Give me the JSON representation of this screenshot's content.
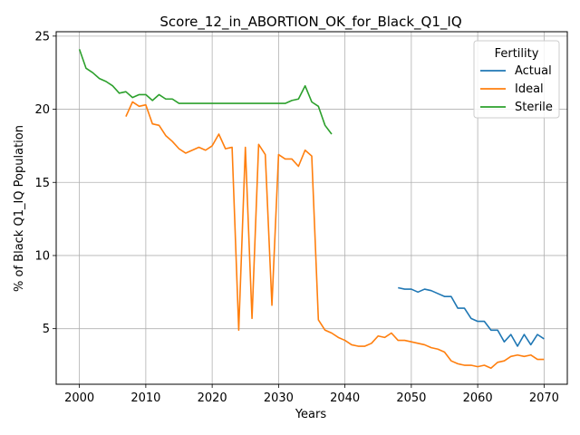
{
  "chart_data": {
    "type": "line",
    "title": "Score_12_in_ABORTION_OK_for_Black_Q1_IQ",
    "xlabel": "Years",
    "ylabel": "% of Black Q1_IQ Population",
    "xlim": [
      1996.5,
      2073.5
    ],
    "ylim": [
      1.2,
      25.3
    ],
    "xticks": [
      2000,
      2010,
      2020,
      2030,
      2040,
      2050,
      2060,
      2070
    ],
    "yticks": [
      5,
      10,
      15,
      20,
      25
    ],
    "grid": true,
    "legend": {
      "title": "Fertility",
      "placement": "top-right"
    },
    "series": [
      {
        "name": "Actual",
        "color": "#1f77b4",
        "x": [
          2048,
          2049,
          2050,
          2051,
          2052,
          2053,
          2054,
          2055,
          2056,
          2057,
          2058,
          2059,
          2060,
          2061,
          2062,
          2063,
          2064,
          2065,
          2066,
          2067,
          2068,
          2069,
          2070
        ],
        "y": [
          7.8,
          7.7,
          7.7,
          7.5,
          7.7,
          7.6,
          7.4,
          7.2,
          7.2,
          6.4,
          6.4,
          5.7,
          5.5,
          5.5,
          4.9,
          4.9,
          4.1,
          4.6,
          3.8,
          4.6,
          3.9,
          4.6,
          4.3
        ]
      },
      {
        "name": "Ideal",
        "color": "#ff7f0e",
        "x": [
          2007,
          2008,
          2009,
          2010,
          2011,
          2012,
          2013,
          2014,
          2015,
          2016,
          2017,
          2018,
          2019,
          2020,
          2021,
          2022,
          2023,
          2024,
          2025,
          2026,
          2027,
          2028,
          2029,
          2030,
          2031,
          2032,
          2033,
          2034,
          2035,
          2036,
          2037,
          2038,
          2039,
          2040,
          2041,
          2042,
          2043,
          2044,
          2045,
          2046,
          2047,
          2048,
          2049,
          2050,
          2051,
          2052,
          2053,
          2054,
          2055,
          2056,
          2057,
          2058,
          2059,
          2060,
          2061,
          2062,
          2063,
          2064,
          2065,
          2066,
          2067,
          2068,
          2069,
          2070
        ],
        "y": [
          19.5,
          20.5,
          20.2,
          20.3,
          19.0,
          18.9,
          18.2,
          17.8,
          17.3,
          17.0,
          17.2,
          17.4,
          17.2,
          17.5,
          18.3,
          17.3,
          17.4,
          4.9,
          17.4,
          5.7,
          17.6,
          16.9,
          6.6,
          16.9,
          16.6,
          16.6,
          16.1,
          17.2,
          16.8,
          5.6,
          4.9,
          4.7,
          4.4,
          4.2,
          3.9,
          3.8,
          3.8,
          4.0,
          4.5,
          4.4,
          4.7,
          4.2,
          4.2,
          4.1,
          4.0,
          3.9,
          3.7,
          3.6,
          3.4,
          2.8,
          2.6,
          2.5,
          2.5,
          2.4,
          2.5,
          2.3,
          2.7,
          2.8,
          3.1,
          3.2,
          3.1,
          3.2,
          2.9,
          2.9
        ]
      },
      {
        "name": "Sterile",
        "color": "#2ca02c",
        "x": [
          2000,
          2001,
          2002,
          2003,
          2004,
          2005,
          2006,
          2007,
          2008,
          2009,
          2010,
          2011,
          2012,
          2013,
          2014,
          2015,
          2016,
          2017,
          2018,
          2019,
          2020,
          2021,
          2022,
          2023,
          2024,
          2025,
          2026,
          2027,
          2028,
          2029,
          2030,
          2031,
          2032,
          2033,
          2034,
          2035,
          2036,
          2037,
          2038
        ],
        "y": [
          24.1,
          22.8,
          22.5,
          22.1,
          21.9,
          21.6,
          21.1,
          21.2,
          20.8,
          21.0,
          21.0,
          20.6,
          21.0,
          20.7,
          20.7,
          20.4,
          20.4,
          20.4,
          20.4,
          20.4,
          20.4,
          20.4,
          20.4,
          20.4,
          20.4,
          20.4,
          20.4,
          20.4,
          20.4,
          20.4,
          20.4,
          20.4,
          20.6,
          20.7,
          21.6,
          20.5,
          20.2,
          18.9,
          18.3
        ]
      }
    ]
  }
}
